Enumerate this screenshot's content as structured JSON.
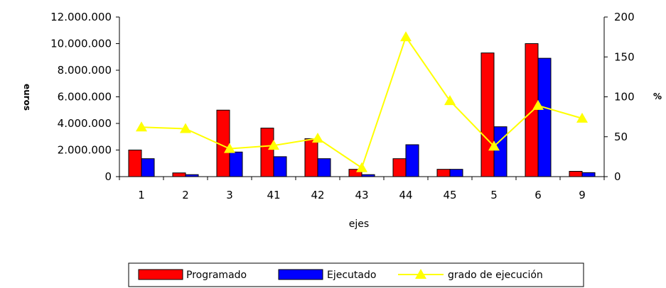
{
  "chart_data": {
    "type": "bar",
    "categories": [
      "1",
      "2",
      "3",
      "41",
      "42",
      "43",
      "44",
      "45",
      "5",
      "6",
      "9"
    ],
    "series": [
      {
        "name": "Programado",
        "kind": "bar",
        "axis": "left",
        "color": "#ff0000",
        "values": [
          2000000,
          280000,
          5000000,
          3650000,
          2850000,
          550000,
          1350000,
          550000,
          9300000,
          10000000,
          400000
        ]
      },
      {
        "name": "Ejecutado",
        "kind": "bar",
        "axis": "left",
        "color": "#0000ff",
        "values": [
          1350000,
          150000,
          1850000,
          1500000,
          1350000,
          150000,
          2400000,
          550000,
          3750000,
          8900000,
          300000
        ]
      },
      {
        "name": "grado de ejecución",
        "kind": "line",
        "axis": "right",
        "color": "#ffff00",
        "values": [
          62,
          60,
          35,
          39,
          48,
          11,
          175,
          95,
          38,
          89,
          73
        ]
      }
    ],
    "xlabel": "ejes",
    "ylabel": "euros",
    "y2label": "%",
    "ylim": [
      0,
      12000000
    ],
    "y2lim": [
      0,
      200
    ],
    "yticks": [
      "0",
      "2.000.000",
      "4.000.000",
      "6.000.000",
      "8.000.000",
      "10.000.000",
      "12.000.000"
    ],
    "y2ticks": [
      "0",
      "50",
      "100",
      "150",
      "200"
    ],
    "grid": false,
    "legend_position": "bottom"
  }
}
